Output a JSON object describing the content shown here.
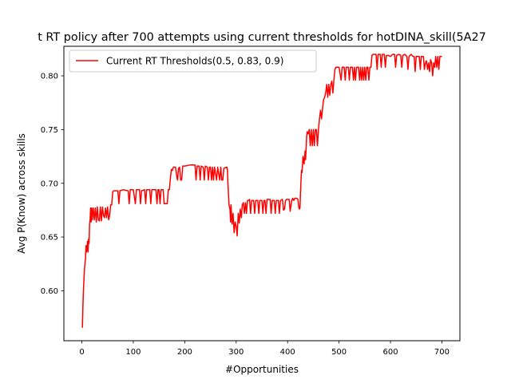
{
  "chart_data": {
    "type": "line",
    "title": "t RT policy after 700 attempts using current thresholds for hotDINA_skill(5A27",
    "xlabel": "#Opportunities",
    "ylabel": "Avg P(Know) across skills",
    "xlim": [
      -35,
      735
    ],
    "ylim": [
      0.5535,
      0.8275
    ],
    "xticks": [
      0,
      100,
      200,
      300,
      400,
      500,
      600,
      700
    ],
    "yticks": [
      0.6,
      0.65,
      0.7,
      0.75,
      0.8
    ],
    "ytick_labels": [
      "0.60",
      "0.65",
      "0.70",
      "0.75",
      "0.80"
    ],
    "grid": false,
    "legend_position": "top-left",
    "series": [
      {
        "name": "Current RT Thresholds(0.5, 0.83, 0.9)",
        "color": "#ff0000",
        "points": [
          [
            0,
            0.566
          ],
          [
            1,
            0.566
          ],
          [
            2,
            0.585
          ],
          [
            3,
            0.6
          ],
          [
            4,
            0.61
          ],
          [
            5,
            0.62
          ],
          [
            6,
            0.625
          ],
          [
            7,
            0.63
          ],
          [
            8,
            0.642
          ],
          [
            9,
            0.636
          ],
          [
            10,
            0.64
          ],
          [
            11,
            0.646
          ],
          [
            12,
            0.636
          ],
          [
            13,
            0.648
          ],
          [
            14,
            0.644
          ],
          [
            15,
            0.662
          ],
          [
            16,
            0.666
          ],
          [
            17,
            0.677
          ],
          [
            18,
            0.664
          ],
          [
            19,
            0.677
          ],
          [
            20,
            0.666
          ],
          [
            22,
            0.677
          ],
          [
            24,
            0.666
          ],
          [
            26,
            0.677
          ],
          [
            28,
            0.664
          ],
          [
            30,
            0.678
          ],
          [
            32,
            0.666
          ],
          [
            34,
            0.665
          ],
          [
            36,
            0.678
          ],
          [
            38,
            0.665
          ],
          [
            40,
            0.678
          ],
          [
            42,
            0.67
          ],
          [
            44,
            0.668
          ],
          [
            46,
            0.677
          ],
          [
            48,
            0.668
          ],
          [
            50,
            0.678
          ],
          [
            52,
            0.666
          ],
          [
            54,
            0.67
          ],
          [
            56,
            0.68
          ],
          [
            58,
            0.68
          ],
          [
            60,
            0.692
          ],
          [
            62,
            0.693
          ],
          [
            66,
            0.693
          ],
          [
            70,
            0.693
          ],
          [
            72,
            0.681
          ],
          [
            74,
            0.693
          ],
          [
            80,
            0.694
          ],
          [
            90,
            0.693
          ],
          [
            92,
            0.681
          ],
          [
            94,
            0.694
          ],
          [
            100,
            0.694
          ],
          [
            104,
            0.681
          ],
          [
            106,
            0.694
          ],
          [
            112,
            0.694
          ],
          [
            114,
            0.681
          ],
          [
            116,
            0.693
          ],
          [
            122,
            0.694
          ],
          [
            124,
            0.681
          ],
          [
            126,
            0.694
          ],
          [
            132,
            0.694
          ],
          [
            134,
            0.681
          ],
          [
            136,
            0.694
          ],
          [
            140,
            0.694
          ],
          [
            144,
            0.694
          ],
          [
            146,
            0.681
          ],
          [
            148,
            0.694
          ],
          [
            150,
            0.694
          ],
          [
            152,
            0.681
          ],
          [
            154,
            0.694
          ],
          [
            158,
            0.694
          ],
          [
            160,
            0.681
          ],
          [
            162,
            0.681
          ],
          [
            164,
            0.681
          ],
          [
            166,
            0.681
          ],
          [
            168,
            0.694
          ],
          [
            170,
            0.694
          ],
          [
            172,
            0.704
          ],
          [
            174,
            0.713
          ],
          [
            176,
            0.712
          ],
          [
            178,
            0.715
          ],
          [
            182,
            0.715
          ],
          [
            185,
            0.705
          ],
          [
            186,
            0.703
          ],
          [
            188,
            0.714
          ],
          [
            190,
            0.715
          ],
          [
            192,
            0.703
          ],
          [
            194,
            0.703
          ],
          [
            196,
            0.716
          ],
          [
            200,
            0.716
          ],
          [
            210,
            0.717
          ],
          [
            220,
            0.717
          ],
          [
            222,
            0.703
          ],
          [
            224,
            0.716
          ],
          [
            228,
            0.716
          ],
          [
            230,
            0.703
          ],
          [
            232,
            0.716
          ],
          [
            236,
            0.715
          ],
          [
            238,
            0.703
          ],
          [
            240,
            0.716
          ],
          [
            244,
            0.715
          ],
          [
            246,
            0.703
          ],
          [
            248,
            0.715
          ],
          [
            250,
            0.715
          ],
          [
            252,
            0.703
          ],
          [
            254,
            0.715
          ],
          [
            256,
            0.703
          ],
          [
            258,
            0.715
          ],
          [
            262,
            0.703
          ],
          [
            264,
            0.715
          ],
          [
            268,
            0.703
          ],
          [
            270,
            0.715
          ],
          [
            272,
            0.703
          ],
          [
            274,
            0.703
          ],
          [
            276,
            0.714
          ],
          [
            282,
            0.715
          ],
          [
            283,
            0.712
          ],
          [
            284,
            0.7
          ],
          [
            285,
            0.69
          ],
          [
            286,
            0.68
          ],
          [
            288,
            0.676
          ],
          [
            289,
            0.664
          ],
          [
            290,
            0.68
          ],
          [
            292,
            0.662
          ],
          [
            294,
            0.672
          ],
          [
            296,
            0.654
          ],
          [
            298,
            0.664
          ],
          [
            300,
            0.66
          ],
          [
            302,
            0.651
          ],
          [
            304,
            0.672
          ],
          [
            306,
            0.663
          ],
          [
            308,
            0.676
          ],
          [
            310,
            0.668
          ],
          [
            312,
            0.68
          ],
          [
            314,
            0.682
          ],
          [
            316,
            0.672
          ],
          [
            318,
            0.682
          ],
          [
            320,
            0.672
          ],
          [
            322,
            0.684
          ],
          [
            324,
            0.684
          ],
          [
            326,
            0.685
          ],
          [
            328,
            0.672
          ],
          [
            330,
            0.684
          ],
          [
            334,
            0.684
          ],
          [
            336,
            0.672
          ],
          [
            338,
            0.684
          ],
          [
            342,
            0.684
          ],
          [
            344,
            0.672
          ],
          [
            346,
            0.684
          ],
          [
            350,
            0.684
          ],
          [
            352,
            0.672
          ],
          [
            354,
            0.684
          ],
          [
            356,
            0.684
          ],
          [
            358,
            0.672
          ],
          [
            360,
            0.685
          ],
          [
            366,
            0.685
          ],
          [
            368,
            0.672
          ],
          [
            370,
            0.684
          ],
          [
            374,
            0.684
          ],
          [
            376,
            0.672
          ],
          [
            378,
            0.684
          ],
          [
            382,
            0.684
          ],
          [
            384,
            0.672
          ],
          [
            386,
            0.684
          ],
          [
            390,
            0.685
          ],
          [
            392,
            0.675
          ],
          [
            394,
            0.676
          ],
          [
            396,
            0.684
          ],
          [
            398,
            0.685
          ],
          [
            400,
            0.685
          ],
          [
            403,
            0.685
          ],
          [
            405,
            0.674
          ],
          [
            408,
            0.684
          ],
          [
            410,
            0.686
          ],
          [
            412,
            0.684
          ],
          [
            414,
            0.686
          ],
          [
            416,
            0.686
          ],
          [
            418,
            0.686
          ],
          [
            420,
            0.685
          ],
          [
            422,
            0.677
          ],
          [
            423,
            0.676
          ],
          [
            424,
            0.677
          ],
          [
            425,
            0.69
          ],
          [
            426,
            0.702
          ],
          [
            427,
            0.712
          ],
          [
            428,
            0.71
          ],
          [
            430,
            0.725
          ],
          [
            432,
            0.718
          ],
          [
            434,
            0.73
          ],
          [
            435,
            0.722
          ],
          [
            437,
            0.743
          ],
          [
            438,
            0.748
          ],
          [
            440,
            0.746
          ],
          [
            442,
            0.75
          ],
          [
            444,
            0.735
          ],
          [
            446,
            0.75
          ],
          [
            448,
            0.735
          ],
          [
            450,
            0.75
          ],
          [
            452,
            0.735
          ],
          [
            454,
            0.75
          ],
          [
            456,
            0.75
          ],
          [
            458,
            0.735
          ],
          [
            460,
            0.75
          ],
          [
            462,
            0.76
          ],
          [
            464,
            0.768
          ],
          [
            466,
            0.76
          ],
          [
            468,
            0.77
          ],
          [
            470,
            0.778
          ],
          [
            472,
            0.78
          ],
          [
            474,
            0.784
          ],
          [
            476,
            0.792
          ],
          [
            478,
            0.78
          ],
          [
            480,
            0.792
          ],
          [
            482,
            0.782
          ],
          [
            484,
            0.792
          ],
          [
            486,
            0.795
          ],
          [
            488,
            0.784
          ],
          [
            490,
            0.796
          ],
          [
            492,
            0.806
          ],
          [
            494,
            0.808
          ],
          [
            498,
            0.808
          ],
          [
            500,
            0.808
          ],
          [
            504,
            0.796
          ],
          [
            506,
            0.808
          ],
          [
            510,
            0.808
          ],
          [
            512,
            0.796
          ],
          [
            514,
            0.808
          ],
          [
            518,
            0.808
          ],
          [
            520,
            0.796
          ],
          [
            522,
            0.808
          ],
          [
            526,
            0.808
          ],
          [
            528,
            0.796
          ],
          [
            530,
            0.808
          ],
          [
            532,
            0.796
          ],
          [
            534,
            0.808
          ],
          [
            538,
            0.808
          ],
          [
            540,
            0.796
          ],
          [
            542,
            0.808
          ],
          [
            544,
            0.796
          ],
          [
            546,
            0.808
          ],
          [
            548,
            0.796
          ],
          [
            550,
            0.808
          ],
          [
            552,
            0.796
          ],
          [
            554,
            0.808
          ],
          [
            556,
            0.808
          ],
          [
            558,
            0.796
          ],
          [
            560,
            0.808
          ],
          [
            562,
            0.808
          ],
          [
            564,
            0.819
          ],
          [
            566,
            0.82
          ],
          [
            572,
            0.82
          ],
          [
            574,
            0.806
          ],
          [
            576,
            0.82
          ],
          [
            580,
            0.82
          ],
          [
            582,
            0.808
          ],
          [
            584,
            0.82
          ],
          [
            588,
            0.82
          ],
          [
            590,
            0.808
          ],
          [
            592,
            0.819
          ],
          [
            596,
            0.819
          ],
          [
            600,
            0.818
          ],
          [
            604,
            0.82
          ],
          [
            608,
            0.82
          ],
          [
            610,
            0.808
          ],
          [
            612,
            0.819
          ],
          [
            616,
            0.82
          ],
          [
            620,
            0.819
          ],
          [
            622,
            0.808
          ],
          [
            624,
            0.819
          ],
          [
            628,
            0.82
          ],
          [
            632,
            0.818
          ],
          [
            634,
            0.806
          ],
          [
            636,
            0.818
          ],
          [
            640,
            0.82
          ],
          [
            644,
            0.818
          ],
          [
            646,
            0.818
          ],
          [
            648,
            0.804
          ],
          [
            650,
            0.818
          ],
          [
            656,
            0.818
          ],
          [
            658,
            0.806
          ],
          [
            660,
            0.818
          ],
          [
            664,
            0.818
          ],
          [
            666,
            0.806
          ],
          [
            668,
            0.812
          ],
          [
            670,
            0.814
          ],
          [
            672,
            0.806
          ],
          [
            674,
            0.812
          ],
          [
            676,
            0.804
          ],
          [
            678,
            0.815
          ],
          [
            680,
            0.812
          ],
          [
            682,
            0.8
          ],
          [
            684,
            0.812
          ],
          [
            686,
            0.808
          ],
          [
            688,
            0.818
          ],
          [
            690,
            0.808
          ],
          [
            692,
            0.818
          ],
          [
            694,
            0.806
          ],
          [
            696,
            0.818
          ],
          [
            698,
            0.818
          ],
          [
            700,
            0.818
          ]
        ]
      }
    ]
  }
}
